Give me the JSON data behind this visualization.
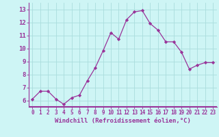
{
  "x": [
    0,
    1,
    2,
    3,
    4,
    5,
    6,
    7,
    8,
    9,
    10,
    11,
    12,
    13,
    14,
    15,
    16,
    17,
    18,
    19,
    20,
    21,
    22,
    23
  ],
  "y": [
    6.1,
    6.7,
    6.7,
    6.1,
    5.7,
    6.2,
    6.4,
    7.5,
    8.5,
    9.8,
    11.2,
    10.7,
    12.2,
    12.8,
    12.9,
    11.9,
    11.4,
    10.5,
    10.5,
    9.7,
    8.4,
    8.7,
    8.9,
    8.9
  ],
  "line_color": "#993399",
  "marker": "D",
  "marker_size": 2.2,
  "bg_color": "#cef5f5",
  "grid_color": "#aadddd",
  "xlabel": "Windchill (Refroidissement éolien,°C)",
  "yticks": [
    6,
    7,
    8,
    9,
    10,
    11,
    12,
    13
  ],
  "xlim": [
    -0.5,
    23.5
  ],
  "ylim": [
    5.5,
    13.5
  ],
  "label_color": "#993399",
  "tick_color": "#993399",
  "axis_color": "#993399",
  "xlabel_fontsize": 6.5,
  "ytick_fontsize": 6.5,
  "xtick_fontsize": 5.5,
  "spine_bottom_color": "#993399",
  "spine_left_color": "#993399"
}
